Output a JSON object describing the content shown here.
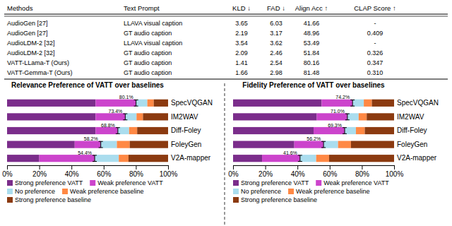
{
  "chart_data": [
    {
      "type": "table",
      "columns": [
        "Methods",
        "Text Prompt",
        "KLD ↓",
        "FAD ↓",
        "Align Acc ↑",
        "CLAP Score ↑"
      ],
      "rows": [
        [
          "AudioGen [27]",
          "LLAVA visual caption",
          "3.65",
          "6.03",
          "41.66",
          "-"
        ],
        [
          "AudioGen [27]",
          "GT audio caption",
          "2.19",
          "3.17",
          "48.96",
          "0.409"
        ],
        [
          "AudioLDM-2 [32]",
          "LLAVA visual caption",
          "3.54",
          "3.62",
          "53.49",
          "-"
        ],
        [
          "AudioLDM-2 [32]",
          "GT audio caption",
          "2.09",
          "2.46",
          "51.84",
          "0.326"
        ],
        [
          "VATT-LLama-T (Ours)",
          "GT audio caption",
          "1.41",
          "2.54",
          "80.16",
          "0.347"
        ],
        [
          "VATT-Gemma-T (Ours)",
          "GT audio caption",
          "1.66",
          "2.98",
          "81.48",
          "0.310"
        ]
      ]
    },
    {
      "type": "bar",
      "orientation": "horizontal",
      "stacked": true,
      "legend": "bottom",
      "title": "Relevance Preference of VATT over baselines",
      "categories": [
        "SpecVQGAN",
        "IM2WAV",
        "Diff-Foley",
        "FoleyGen",
        "V2A-mapper"
      ],
      "series": [
        {
          "name": "Strong preference  VATT",
          "color": "#7B2D8B",
          "values": [
            55.0,
            55.0,
            55.0,
            42.0,
            20.0
          ]
        },
        {
          "name": "Weak preference  VATT",
          "color": "#CC44CC",
          "values": [
            25.1,
            18.4,
            13.8,
            16.2,
            34.4
          ]
        },
        {
          "name": "No preference",
          "color": "#AADDEE",
          "values": [
            7.0,
            7.0,
            7.0,
            10.0,
            15.0
          ]
        },
        {
          "name": "Weak preference baseline",
          "color": "#FF8844",
          "values": [
            4.0,
            4.0,
            5.0,
            8.0,
            6.0
          ]
        },
        {
          "name": "Strong preference baseline",
          "color": "#8B3A10",
          "values": [
            8.9,
            15.6,
            19.2,
            23.8,
            24.6
          ]
        }
      ],
      "annotations": [
        {
          "text": "80.1%",
          "x": 80.1
        },
        {
          "text": "73.4%",
          "x": 73.4
        },
        {
          "text": "68.8%",
          "x": 68.8
        },
        {
          "text": "58.2%",
          "x": 58.2
        },
        {
          "text": "54.4%",
          "x": 54.4
        }
      ],
      "xlim": [
        0,
        100
      ],
      "xticks": [
        {
          "value": 0,
          "label": "0%"
        },
        {
          "value": 20,
          "label": "20%"
        },
        {
          "value": 40,
          "label": "40%"
        },
        {
          "value": 60,
          "label": "60%"
        },
        {
          "value": 80,
          "label": "80%"
        },
        {
          "value": 100,
          "label": "100%"
        }
      ]
    },
    {
      "type": "bar",
      "orientation": "horizontal",
      "stacked": true,
      "legend": "bottom",
      "title": "Fidelity Preference of VATT over baselines",
      "categories": [
        "SpecVQGAN",
        "IM2WAV",
        "Diff-Foley",
        "FoleyGen",
        "V2A-mapper"
      ],
      "series": [
        {
          "name": "Strong preference  VATT",
          "color": "#7B2D8B",
          "values": [
            55.0,
            52.0,
            50.0,
            38.0,
            18.0
          ]
        },
        {
          "name": "Weak preference  VATT",
          "color": "#CC44CC",
          "values": [
            19.2,
            19.0,
            19.3,
            18.2,
            23.6
          ]
        },
        {
          "name": "No preference",
          "color": "#AADDEE",
          "values": [
            7.0,
            7.0,
            7.0,
            9.0,
            10.0
          ]
        },
        {
          "name": "Weak preference baseline",
          "color": "#FF8844",
          "values": [
            5.0,
            5.0,
            5.5,
            8.0,
            8.0
          ]
        },
        {
          "name": "Strong preference baseline",
          "color": "#8B3A10",
          "values": [
            13.8,
            17.0,
            18.2,
            26.8,
            40.4
          ]
        }
      ],
      "annotations": [
        {
          "text": "74.2%",
          "x": 74.2
        },
        {
          "text": "71.0%",
          "x": 71.0
        },
        {
          "text": "69.3%",
          "x": 69.3
        },
        {
          "text": "56.2%",
          "x": 56.2
        },
        {
          "text": "41.6%",
          "x": 41.6
        }
      ],
      "xlim": [
        0,
        100
      ],
      "xticks": [
        {
          "value": 0,
          "label": "0%"
        },
        {
          "value": 20,
          "label": "20%"
        },
        {
          "value": 40,
          "label": "40%"
        },
        {
          "value": 60,
          "label": "60%"
        },
        {
          "value": 80,
          "label": "80%"
        },
        {
          "value": 100,
          "label": "100%"
        }
      ]
    }
  ]
}
